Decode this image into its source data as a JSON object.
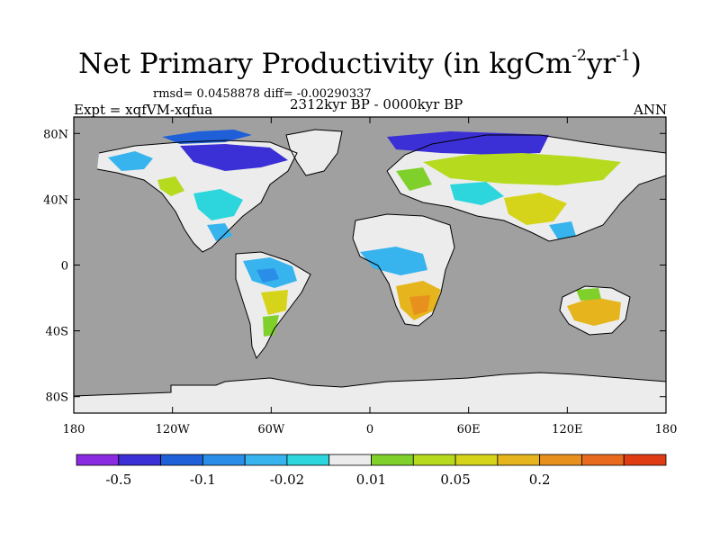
{
  "title": {
    "main": "Net Primary Productivity (in kgCm",
    "exp1": "-2",
    "mid": "yr",
    "exp2": "-1",
    "close": ")"
  },
  "stats_line": "rmsd= 0.0458878 diff= -0.00290337",
  "experiment_label": "Expt = xqfVM-xqfua",
  "period_label": "2312kyr BP - 0000kyr BP",
  "season_label": "ANN",
  "map": {
    "projection": "cylindrical-equidistant",
    "lon_range": [
      -180,
      180
    ],
    "lat_range": [
      -90,
      90
    ],
    "lon_ticks": [
      {
        "value": -180,
        "label": "180"
      },
      {
        "value": -120,
        "label": "120W"
      },
      {
        "value": -60,
        "label": "60W"
      },
      {
        "value": 0,
        "label": "0"
      },
      {
        "value": 60,
        "label": "60E"
      },
      {
        "value": 120,
        "label": "120E"
      },
      {
        "value": 180,
        "label": "180"
      }
    ],
    "lat_ticks": [
      {
        "value": 80,
        "label": "80N"
      },
      {
        "value": 40,
        "label": "40N"
      },
      {
        "value": 0,
        "label": "0"
      },
      {
        "value": -40,
        "label": "40S"
      },
      {
        "value": -80,
        "label": "80S"
      }
    ],
    "ocean_color": "#a0a0a0",
    "land_neutral_color": "#ececec"
  },
  "colorbar": {
    "colors": [
      "#8a2be2",
      "#3b2fd6",
      "#1f5fd8",
      "#2a8ee8",
      "#37b3ee",
      "#2cd6dc",
      "#ececec",
      "#7fd02a",
      "#b6da1e",
      "#d6d41a",
      "#e6b41c",
      "#e8901e",
      "#e86a1e",
      "#e03c14"
    ],
    "labels": [
      {
        "index": 1,
        "text": "-0.5"
      },
      {
        "index": 3,
        "text": "-0.1"
      },
      {
        "index": 5,
        "text": "-0.02"
      },
      {
        "index": 7,
        "text": "0.01"
      },
      {
        "index": 9,
        "text": "0.05"
      },
      {
        "index": 11,
        "text": "0.2"
      }
    ]
  }
}
